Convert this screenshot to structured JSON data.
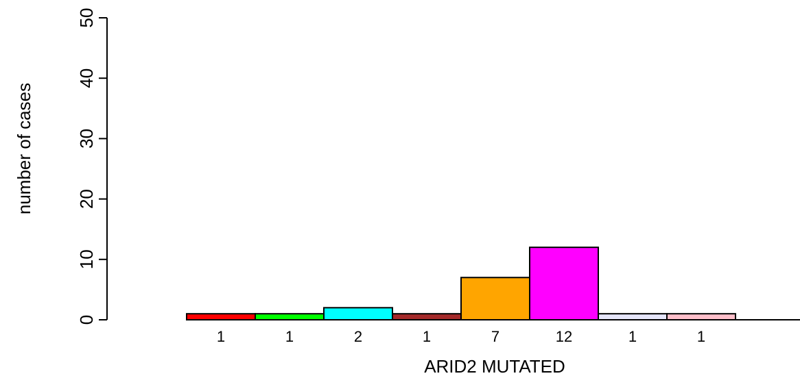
{
  "chart_data": {
    "type": "bar",
    "title": "",
    "xlabel": "ARID2 MUTATED",
    "ylabel": "number of cases",
    "ylim": [
      0,
      50
    ],
    "yticks": [
      0,
      10,
      20,
      30,
      40,
      50
    ],
    "grid": false,
    "legend": "none",
    "values": [
      1,
      1,
      2,
      1,
      7,
      12,
      1,
      1
    ],
    "count_labels": [
      "1",
      "1",
      "2",
      "1",
      "7",
      "12",
      "1",
      "1"
    ],
    "colors": [
      "#ff0000",
      "#00ff00",
      "#00ffff",
      "#a52a2a",
      "#ffa500",
      "#ff00ff",
      "#e6e6fa",
      "#ffc0cb"
    ]
  }
}
